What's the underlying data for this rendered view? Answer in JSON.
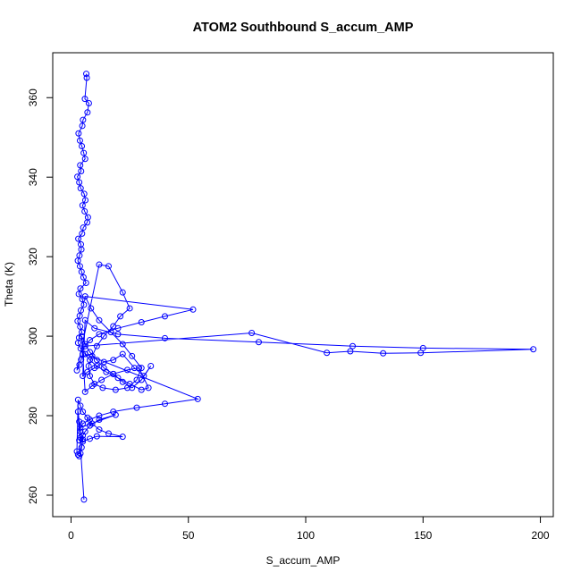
{
  "chart_data": {
    "type": "scatter",
    "title": "ATOM2 Southbound S_accum_AMP",
    "xlabel": "S_accum_AMP",
    "ylabel": "Theta (K)",
    "xlim": [
      -7.8,
      205.5
    ],
    "ylim": [
      254.6,
      371.3
    ],
    "xticks": [
      0,
      50,
      100,
      150,
      200
    ],
    "yticks": [
      260,
      280,
      300,
      320,
      340,
      360
    ],
    "grid": false,
    "legend": "none",
    "series_color": "#0000ff",
    "marker": "open-circle",
    "connected": true,
    "series": [
      {
        "x": [
          6.5,
          6.7,
          5.9,
          7.6,
          7.0,
          5.1,
          4.8,
          3.2,
          3.8,
          4.6,
          5.4,
          6.0,
          3.9,
          4.3,
          2.7,
          3.5,
          4.1,
          5.6,
          6.1,
          4.9,
          5.8,
          7.2,
          6.9,
          5.2,
          4.7,
          3.1,
          4.2,
          4.4,
          3.6,
          2.9,
          3.8,
          4.5,
          5.3,
          6.4,
          4.0,
          3.3,
          4.8,
          5.5,
          4.2,
          3.7,
          2.8,
          3.9,
          4.6,
          3.4,
          3.0,
          4.1,
          5.0,
          4.3,
          3.6,
          2.5,
          12.0,
          16.0,
          22.0,
          25.0,
          21.0,
          18.0,
          14.0,
          11.0,
          9.0,
          7.5,
          8.0,
          10.0,
          13.5,
          19.0,
          24.0,
          28.0,
          30.0,
          26.0,
          22.0,
          17.0,
          12.0,
          8.5,
          6.0,
          52.0,
          40.0,
          30.0,
          20.0,
          12.0,
          8.0,
          6.0,
          77.0,
          109.0,
          119.0,
          133.0,
          149.0,
          197.0,
          150.0,
          120.0,
          80.0,
          40.0,
          20.0,
          10.0,
          6.0,
          5.0,
          7.0,
          10.0,
          14.0,
          18.0,
          22.0,
          27.0,
          31.0,
          34.0,
          30.0,
          26.0,
          22.0,
          18.0,
          14.0,
          11.0,
          8.0,
          6.0,
          4.5,
          6.0,
          9.0,
          13.0,
          18.0,
          24.0,
          29.0,
          33.0,
          30.0,
          25.0,
          20.0,
          15.0,
          11.0,
          8.0,
          6.0,
          54.0,
          40.0,
          28.0,
          18.0,
          12.0,
          8.0,
          5.0,
          4.0,
          19.0,
          12.0,
          8.0,
          6.0,
          5.0,
          4.0,
          3.5,
          5.0,
          8.0,
          11.0,
          22.0,
          16.0,
          12.0,
          9.0,
          7.0,
          5.0,
          4.0,
          3.0,
          2.5,
          3.0,
          3.5,
          4.0,
          4.5,
          5.0,
          4.0,
          3.5,
          3.0,
          5.5
        ],
        "y": [
          366.0,
          365.0,
          359.7,
          358.6,
          356.3,
          354.4,
          352.9,
          351.0,
          349.2,
          347.8,
          346.1,
          344.6,
          343.0,
          341.5,
          340.1,
          338.7,
          337.2,
          335.8,
          334.2,
          332.9,
          331.4,
          329.9,
          328.6,
          327.3,
          325.8,
          324.5,
          323.1,
          321.8,
          320.3,
          319.0,
          317.6,
          316.2,
          314.8,
          313.4,
          312.0,
          310.6,
          309.3,
          307.9,
          306.5,
          305.1,
          303.8,
          302.4,
          301.0,
          299.6,
          298.3,
          296.9,
          295.5,
          294.1,
          292.8,
          291.4,
          318.0,
          317.6,
          311.0,
          307.0,
          305.0,
          302.5,
          300.0,
          297.5,
          295.0,
          292.5,
          290.0,
          288.0,
          287.0,
          286.5,
          287.0,
          289.0,
          292.0,
          295.0,
          298.0,
          301.0,
          304.0,
          307.0,
          310.0,
          306.7,
          305.0,
          303.5,
          302.0,
          300.5,
          299.0,
          297.5,
          300.8,
          295.8,
          296.2,
          295.7,
          295.8,
          296.7,
          297.0,
          297.5,
          298.5,
          299.5,
          300.5,
          302.0,
          304.0,
          290.0,
          291.0,
          292.0,
          293.5,
          294.0,
          295.5,
          292.0,
          290.0,
          292.5,
          289.0,
          287.0,
          288.5,
          290.5,
          292.0,
          294.0,
          296.0,
          298.0,
          300.0,
          286.0,
          287.5,
          289.0,
          290.5,
          291.5,
          292.0,
          287.0,
          286.5,
          288.0,
          289.5,
          291.0,
          292.5,
          294.0,
          295.5,
          284.2,
          283.0,
          282.0,
          281.0,
          280.0,
          279.0,
          278.0,
          277.0,
          280.2,
          279.0,
          277.5,
          276.0,
          275.0,
          274.5,
          273.8,
          273.5,
          274.2,
          274.8,
          274.7,
          275.5,
          276.5,
          278.0,
          279.5,
          281.0,
          282.5,
          284.0,
          271.0,
          270.2,
          269.8,
          270.5,
          272.0,
          274.0,
          276.0,
          278.5,
          281.0,
          258.9
        ]
      }
    ]
  }
}
